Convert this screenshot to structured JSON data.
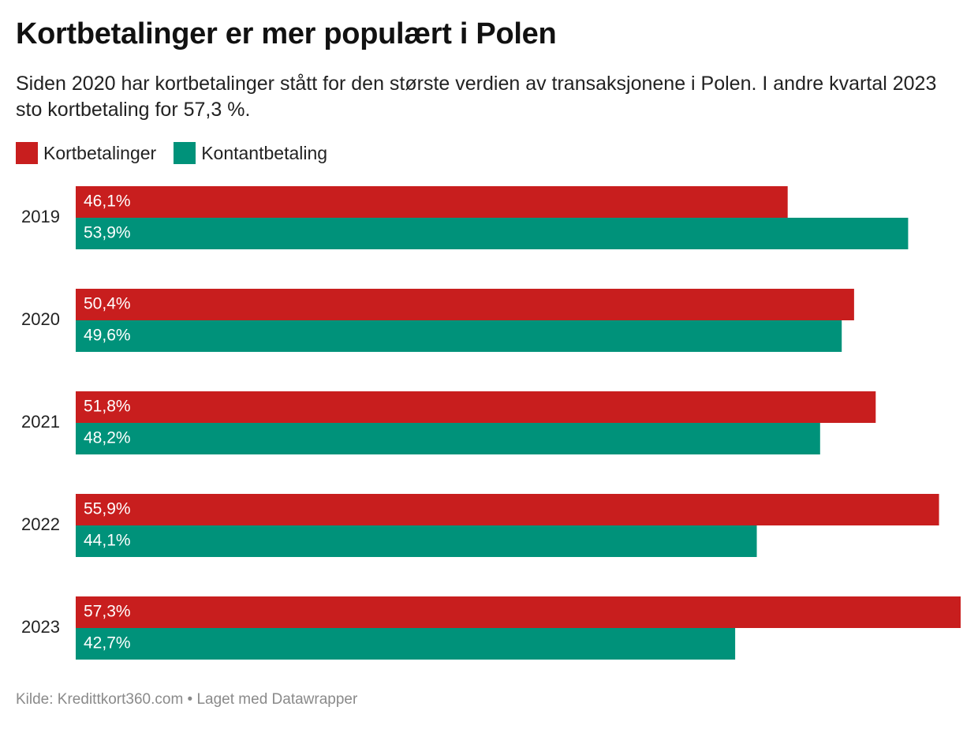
{
  "title": "Kortbetalinger er mer populært i Polen",
  "subtitle": "Siden 2020 har kortbetalinger stått for den største verdien av transaksjonene i Polen. I andre kvartal 2023 sto kortbetaling for 57,3 %.",
  "source": "Kilde: Kredittkort360.com • Laget med Datawrapper",
  "colors": {
    "kort": "#c81e1e",
    "kontant": "#00927a"
  },
  "chart_data": {
    "type": "bar",
    "orientation": "horizontal",
    "categories": [
      "2019",
      "2020",
      "2021",
      "2022",
      "2023"
    ],
    "series": [
      {
        "name": "Kortbetalinger",
        "color": "#c81e1e",
        "values": [
          46.1,
          50.4,
          51.8,
          55.9,
          57.3
        ],
        "labels": [
          "46,1%",
          "50,4%",
          "51,8%",
          "55,9%",
          "57,3%"
        ]
      },
      {
        "name": "Kontantbetaling",
        "color": "#00927a",
        "values": [
          53.9,
          49.6,
          48.2,
          44.1,
          42.7
        ],
        "labels": [
          "53,9%",
          "49,6%",
          "48,2%",
          "44,1%",
          "42,7%"
        ]
      }
    ],
    "xlim": [
      0,
      57.3
    ],
    "grid": false,
    "legend": "top-left",
    "title": "Kortbetalinger er mer populært i Polen",
    "xlabel": "",
    "ylabel": ""
  }
}
